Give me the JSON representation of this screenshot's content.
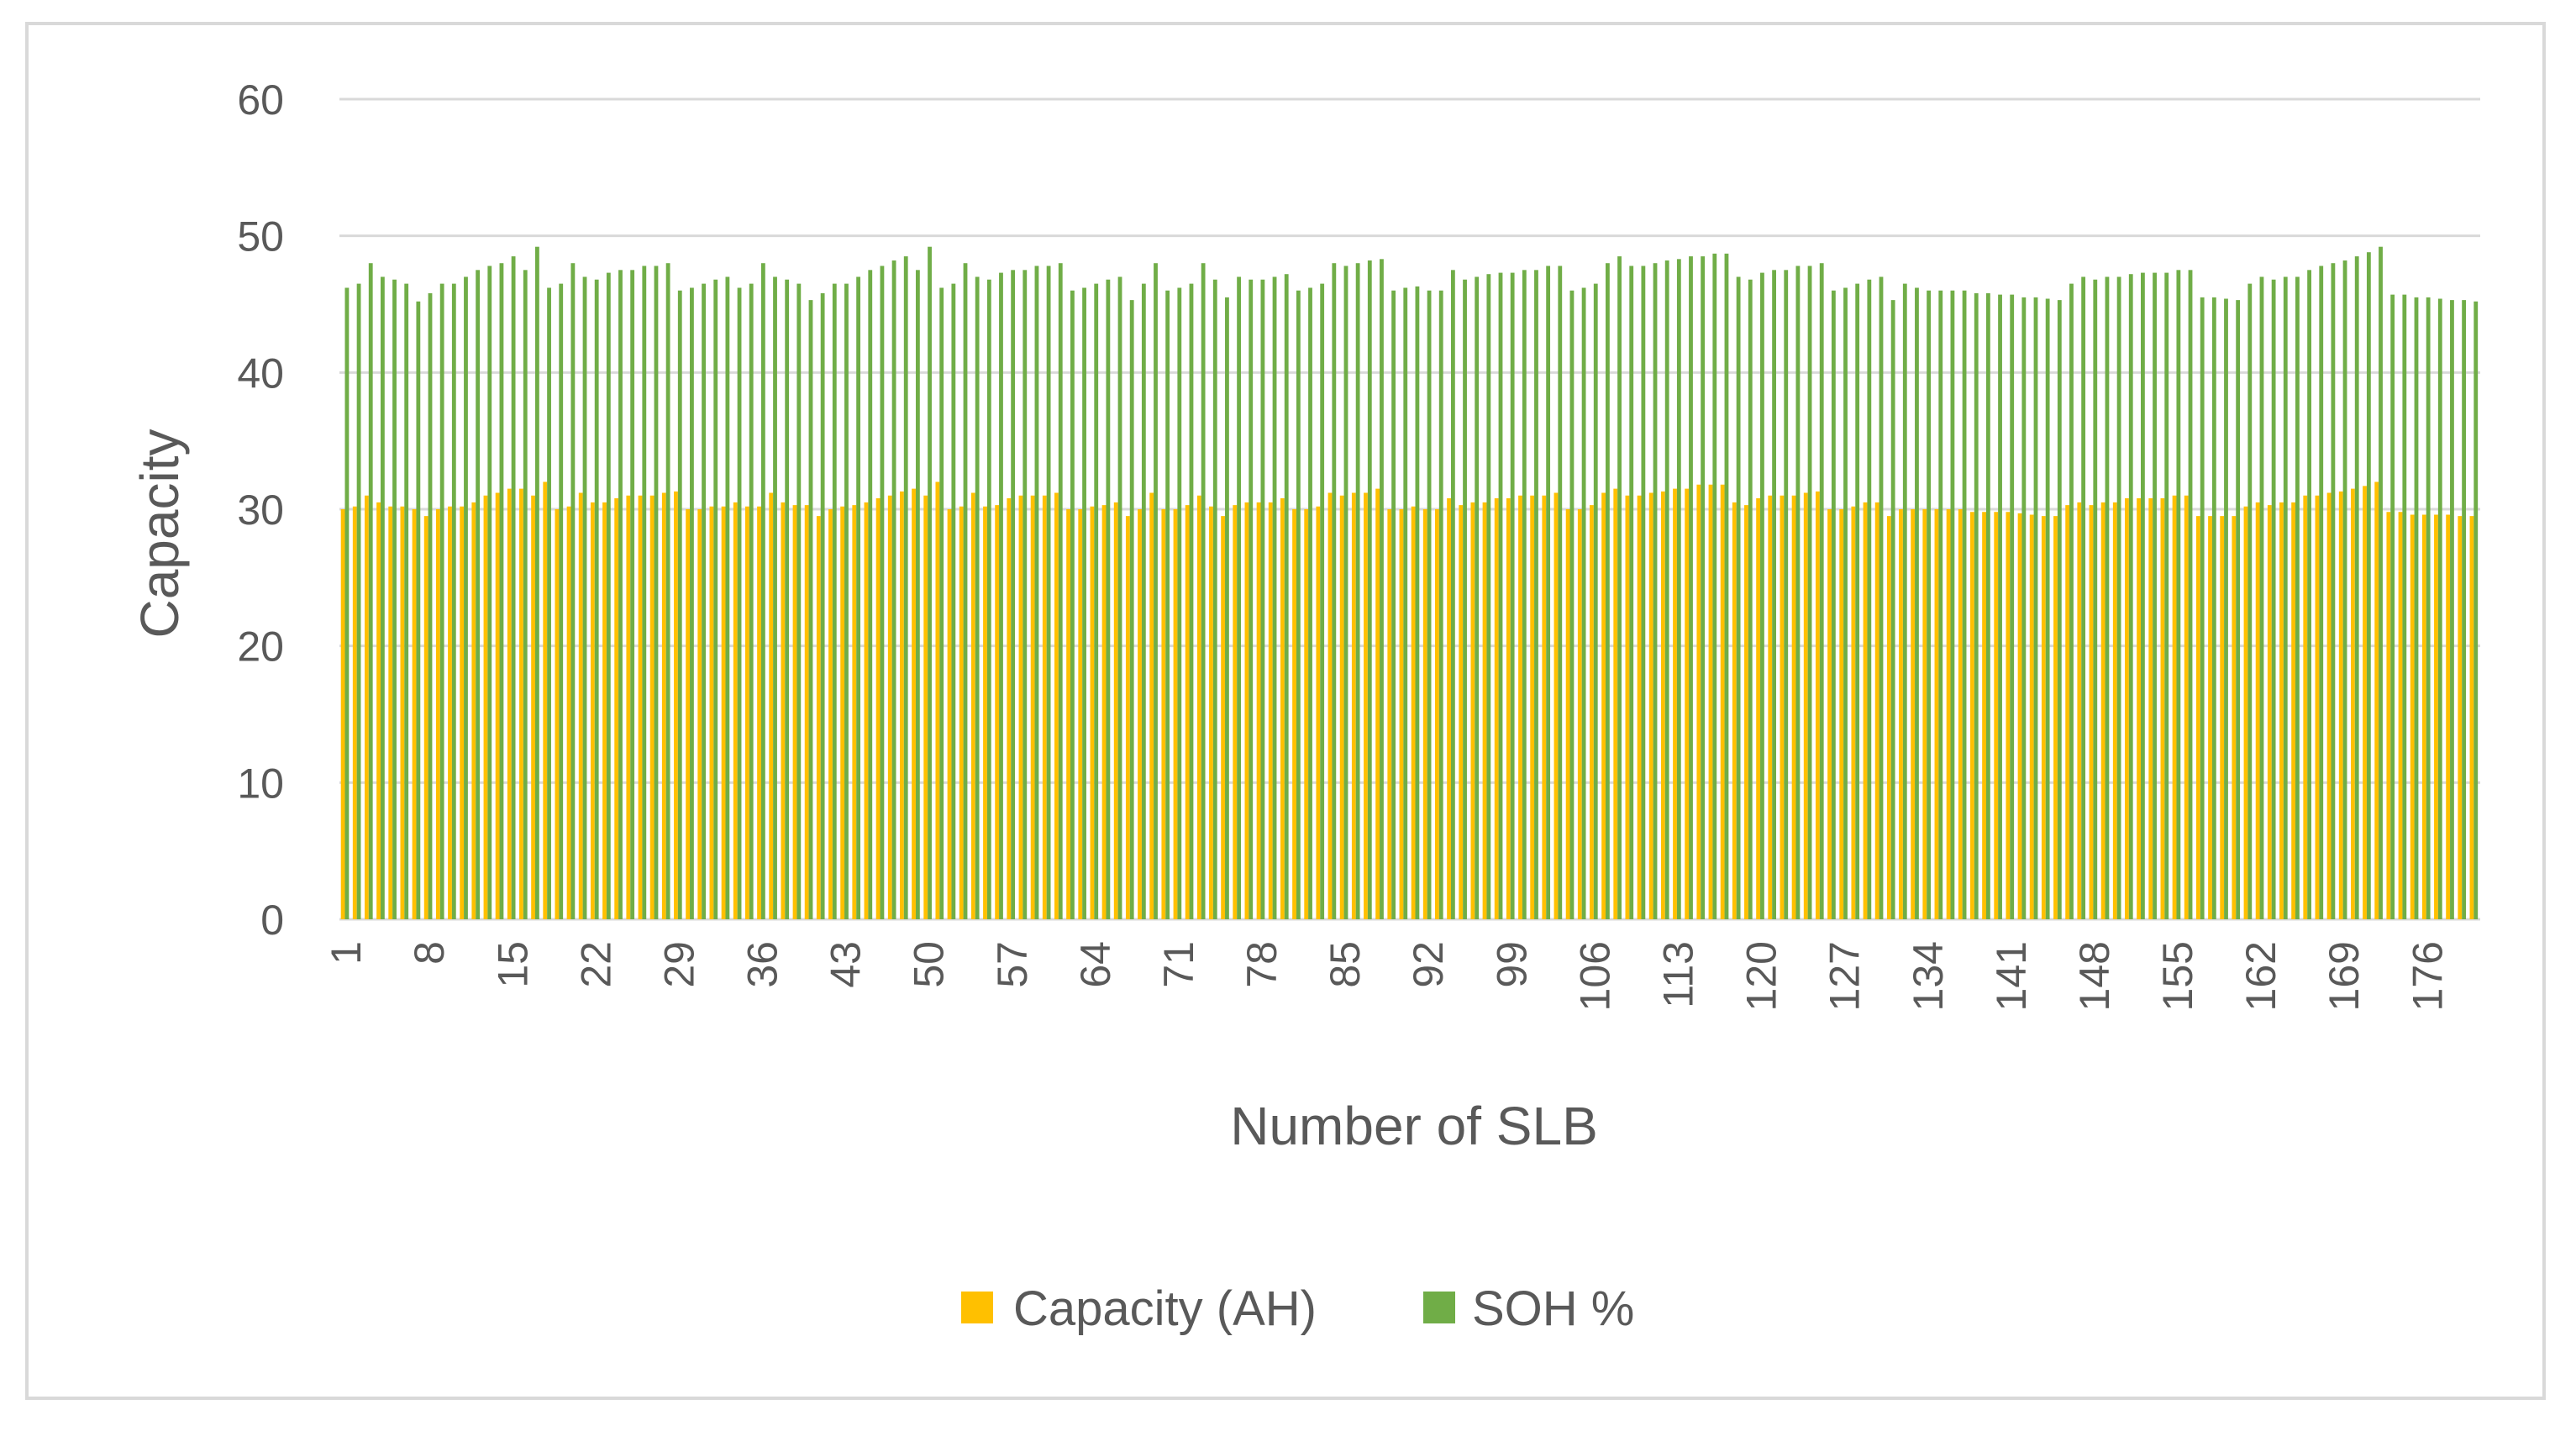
{
  "chart_data": {
    "type": "bar",
    "title": "",
    "xlabel": "Number of SLB",
    "ylabel": "Capacity",
    "ylim": [
      0,
      60
    ],
    "yticks": [
      0,
      10,
      20,
      30,
      40,
      50,
      60
    ],
    "grid": true,
    "legend_position": "bottom",
    "x_tick_labels": [
      "1",
      "8",
      "15",
      "22",
      "29",
      "36",
      "43",
      "50",
      "57",
      "64",
      "71",
      "78",
      "85",
      "92",
      "99",
      "106",
      "113",
      "120",
      "127",
      "134",
      "141",
      "148",
      "155",
      "162",
      "169",
      "176"
    ],
    "num_categories": 180,
    "series": [
      {
        "name": "Capacity (AH)",
        "color": "#ffc000",
        "values": [
          30.0,
          30.2,
          31.0,
          30.5,
          30.2,
          30.2,
          30.0,
          29.5,
          30.0,
          30.2,
          30.2,
          30.5,
          31.0,
          31.2,
          31.5,
          31.5,
          31.0,
          32.0,
          30.0,
          30.2,
          31.2,
          30.5,
          30.5,
          30.8,
          31.0,
          31.0,
          31.0,
          31.2,
          31.3,
          30.0,
          30.0,
          30.2,
          30.2,
          30.5,
          30.2,
          30.2,
          31.2,
          30.5,
          30.3,
          30.3,
          29.5,
          30.0,
          30.2,
          30.3,
          30.5,
          30.8,
          31.0,
          31.3,
          31.5,
          31.0,
          32.0,
          30.0,
          30.2,
          31.2,
          30.2,
          30.3,
          30.8,
          31.0,
          31.0,
          31.0,
          31.2,
          30.0,
          30.0,
          30.2,
          30.3,
          30.5,
          29.5,
          30.0,
          31.2,
          30.0,
          30.0,
          30.3,
          31.0,
          30.2,
          29.5,
          30.3,
          30.5,
          30.5,
          30.5,
          30.8,
          30.0,
          30.0,
          30.2,
          31.2,
          31.0,
          31.2,
          31.2,
          31.5,
          30.0,
          30.0,
          30.2,
          30.0,
          30.0,
          30.8,
          30.3,
          30.5,
          30.5,
          30.8,
          30.8,
          31.0,
          31.0,
          31.0,
          31.2,
          30.0,
          30.0,
          30.3,
          31.2,
          31.5,
          31.0,
          31.0,
          31.2,
          31.3,
          31.5,
          31.5,
          31.8,
          31.8,
          31.8,
          30.5,
          30.3,
          30.8,
          31.0,
          31.0,
          31.0,
          31.2,
          31.3,
          30.0,
          30.0,
          30.2,
          30.5,
          30.5,
          29.5,
          30.0,
          30.0,
          30.0,
          30.0,
          30.0,
          30.0,
          29.8,
          29.8,
          29.8,
          29.8,
          29.7,
          29.6,
          29.5,
          29.5,
          30.3,
          30.5,
          30.3,
          30.5,
          30.5,
          30.8,
          30.8,
          30.8,
          30.8,
          31.0,
          31.0,
          29.5,
          29.5,
          29.5,
          29.5,
          30.2,
          30.5,
          30.3,
          30.5,
          30.5,
          31.0,
          31.0,
          31.2,
          31.3,
          31.5,
          31.7,
          32.0,
          29.8,
          29.8,
          29.6,
          29.6,
          29.6,
          29.6,
          29.5,
          29.5
        ],
        "soh_values_approx": []
      },
      {
        "name": "SOH %",
        "color": "#70ad47",
        "values": [
          46.2,
          46.5,
          48.0,
          47.0,
          46.8,
          46.5,
          45.2,
          45.8,
          46.5,
          46.5,
          47.0,
          47.5,
          47.8,
          48.0,
          48.5,
          47.5,
          49.2,
          46.2,
          46.5,
          48.0,
          47.0,
          46.8,
          47.3,
          47.5,
          47.5,
          47.8,
          47.8,
          48.0,
          46.0,
          46.2,
          46.5,
          46.8,
          47.0,
          46.2,
          46.5,
          48.0,
          47.0,
          46.8,
          46.5,
          45.3,
          45.8,
          46.5,
          46.5,
          47.0,
          47.5,
          47.8,
          48.2,
          48.5,
          47.5,
          49.2,
          46.2,
          46.5,
          48.0,
          47.0,
          46.8,
          47.3,
          47.5,
          47.5,
          47.8,
          47.8,
          48.0,
          46.0,
          46.2,
          46.5,
          46.8,
          47.0,
          45.3,
          46.5,
          48.0,
          46.0,
          46.2,
          46.5,
          48.0,
          46.8,
          45.5,
          47.0,
          46.8,
          46.8,
          47.0,
          47.2,
          46.0,
          46.2,
          46.5,
          48.0,
          47.8,
          48.0,
          48.2,
          48.3,
          46.0,
          46.2,
          46.3,
          46.0,
          46.0,
          47.5,
          46.8,
          47.0,
          47.2,
          47.3,
          47.3,
          47.5,
          47.5,
          47.8,
          47.8,
          46.0,
          46.2,
          46.5,
          48.0,
          48.5,
          47.8,
          47.8,
          48.0,
          48.2,
          48.3,
          48.5,
          48.5,
          48.7,
          48.7,
          47.0,
          46.8,
          47.3,
          47.5,
          47.5,
          47.8,
          47.8,
          48.0,
          46.0,
          46.2,
          46.5,
          46.8,
          47.0,
          45.3,
          46.5,
          46.2,
          46.0,
          46.0,
          46.0,
          46.0,
          45.8,
          45.8,
          45.7,
          45.7,
          45.5,
          45.5,
          45.4,
          45.3,
          46.5,
          47.0,
          46.8,
          47.0,
          47.0,
          47.2,
          47.3,
          47.3,
          47.3,
          47.5,
          47.5,
          45.5,
          45.5,
          45.4,
          45.3,
          46.5,
          47.0,
          46.8,
          47.0,
          47.0,
          47.5,
          47.8,
          48.0,
          48.2,
          48.5,
          48.8,
          49.2,
          45.7,
          45.7,
          45.5,
          45.5,
          45.4,
          45.3,
          45.3,
          45.2
        ]
      }
    ]
  }
}
